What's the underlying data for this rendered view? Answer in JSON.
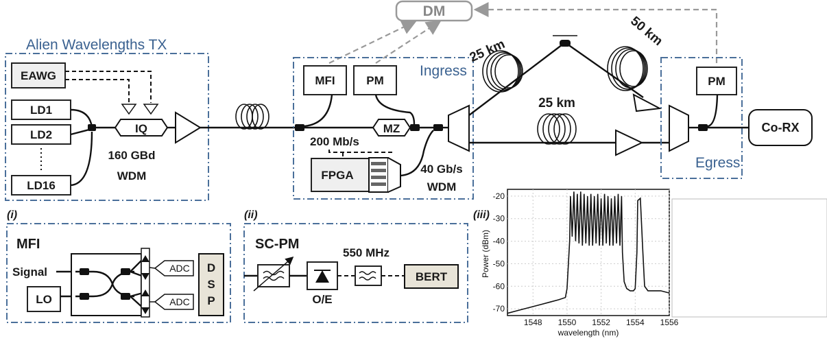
{
  "diagram": {
    "dm_label": "DM",
    "tx_title": "Alien Wavelengths TX",
    "eawg": "EAWG",
    "ld1": "LD1",
    "ld2": "LD2",
    "ld16": "LD16",
    "iq": "IQ",
    "tx_rate": "160 GBd",
    "tx_wdm": "WDM",
    "ingress_title": "Ingress",
    "mfi": "MFI",
    "pm_ingress": "PM",
    "mz": "MZ",
    "rate_200": "200 Mb/s",
    "fpga": "FPGA",
    "rate_40": "40 Gb/s",
    "wdm_40": "WDM",
    "fiber_25_top": "25 km",
    "fiber_50": "50 km",
    "fiber_25_bottom": "25 km",
    "egress_title": "Egress",
    "pm_egress": "PM",
    "corx": "Co-RX"
  },
  "panel_i": {
    "tag": "(i)",
    "title": "MFI",
    "signal": "Signal",
    "lo": "LO",
    "adc1": "ADC",
    "adc2": "ADC",
    "dsp": [
      "D",
      "S",
      "P"
    ]
  },
  "panel_ii": {
    "tag": "(ii)",
    "title": "SC-PM",
    "bw": "550 MHz",
    "bert": "BERT",
    "oe": "O/E"
  },
  "panel_iii": {
    "tag": "(iii)",
    "chart_data": {
      "type": "line",
      "xlabel": "wavelength (nm)",
      "ylabel": "Power (dBm)",
      "xlim": [
        1546.5,
        1556
      ],
      "ylim": [
        -73,
        -17
      ],
      "xticks": [
        1548,
        1550,
        1552,
        1554,
        1556
      ],
      "yticks": [
        -20,
        -30,
        -40,
        -50,
        -60,
        -70
      ],
      "grid": true,
      "series": [
        {
          "x": [
            1546.5,
            1547.0,
            1547.5,
            1548.0,
            1548.5,
            1549.0,
            1549.5,
            1549.9,
            1550.0,
            1550.15,
            1550.2,
            1550.3,
            1550.4,
            1550.5,
            1550.6,
            1550.7,
            1550.8,
            1550.9,
            1551.0,
            1551.1,
            1551.2,
            1551.3,
            1551.4,
            1551.5,
            1551.6,
            1551.7,
            1551.8,
            1551.9,
            1552.0,
            1552.1,
            1552.2,
            1552.3,
            1552.4,
            1552.5,
            1552.6,
            1552.7,
            1552.8,
            1552.9,
            1553.0,
            1553.1,
            1553.2,
            1553.25,
            1553.35,
            1553.5,
            1553.7,
            1553.9,
            1554.0,
            1554.1,
            1554.15,
            1554.3,
            1554.45,
            1554.55,
            1554.75,
            1555.0,
            1555.5,
            1556.0
          ],
          "y": [
            -72,
            -71,
            -70,
            -69,
            -68,
            -67,
            -66,
            -65,
            -61,
            -40,
            -20,
            -38,
            -18,
            -40,
            -19,
            -41,
            -18,
            -42,
            -19,
            -41,
            -20,
            -42,
            -19,
            -42,
            -20,
            -41,
            -19,
            -42,
            -21,
            -42,
            -19,
            -41,
            -20,
            -42,
            -21,
            -42,
            -20,
            -41,
            -19,
            -42,
            -20,
            -45,
            -58,
            -61,
            -62,
            -62,
            -61,
            -45,
            -22,
            -21,
            -45,
            -60,
            -62,
            -62,
            -62,
            -63
          ]
        }
      ]
    }
  },
  "colors": {
    "frame_dash": "#4a6f9a",
    "title_blue": "#3a6190",
    "dm_arrow": "#999999",
    "box_fill_gray": "#efefef",
    "panel_fill": "#e8e4d8"
  }
}
